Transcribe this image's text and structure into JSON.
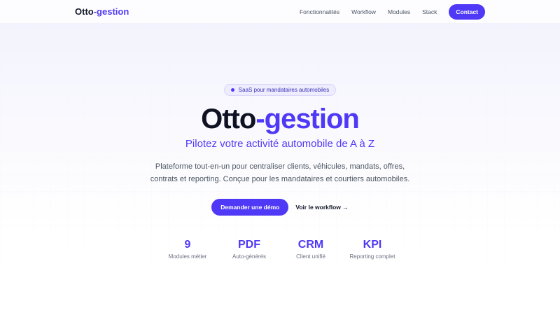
{
  "nav": {
    "logo_main": "Otto",
    "logo_accent": "-gestion",
    "links": [
      "Fonctionnalités",
      "Workflow",
      "Modules",
      "Stack"
    ],
    "contact": "Contact"
  },
  "hero": {
    "badge": "SaaS pour mandataires automobiles",
    "title_main": "Otto",
    "title_accent": "-gestion",
    "subtitle": "Pilotez votre activité automobile de A à Z",
    "description_line1": "Plateforme tout-en-un pour centraliser clients, véhicules, mandats, offres,",
    "description_line2": "contrats et reporting. Conçue pour les mandataires et courtiers automobiles.",
    "primary_button": "Demander une démo",
    "secondary_button": "Voir le workflow",
    "arrow": "→"
  },
  "stats": [
    {
      "value": "9",
      "label": "Modules métier"
    },
    {
      "value": "PDF",
      "label": "Auto-générés"
    },
    {
      "value": "CRM",
      "label": "Client unifié"
    },
    {
      "value": "KPI",
      "label": "Reporting complet"
    }
  ],
  "colors": {
    "accent": "#4f39f6",
    "text": "#0f1222"
  }
}
